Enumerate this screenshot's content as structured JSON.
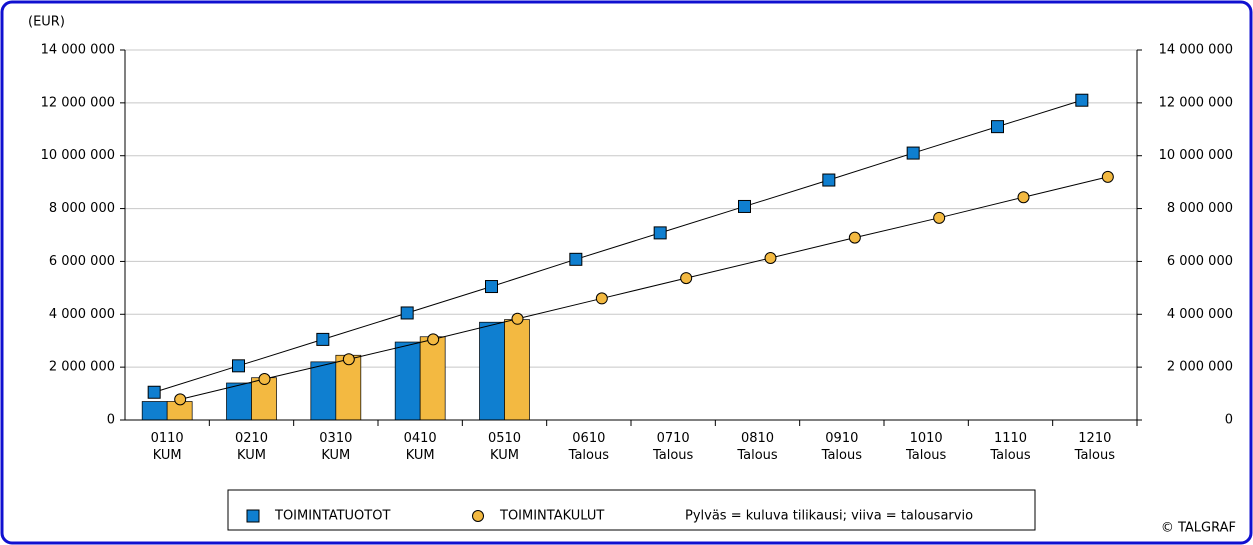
{
  "chart_data": {
    "type": "bar_line",
    "y_unit": "(EUR)",
    "categories": [
      "0110 KUM",
      "0210 KUM",
      "0310 KUM",
      "0410 KUM",
      "0510 KUM",
      "0610 Talous",
      "0710 Talous",
      "0810 Talous",
      "0910 Talous",
      "1010 Talous",
      "1110 Talous",
      "1210 Talous"
    ],
    "series": [
      {
        "name": "TOIMINTATUOTOT",
        "color": "#0f7fd0",
        "marker": "square",
        "values": [
          700000,
          1400000,
          2200000,
          2950000,
          3700000,
          null,
          null,
          null,
          null,
          null,
          null,
          null
        ],
        "line_values": [
          1050000,
          2050000,
          3050000,
          4050000,
          5050000,
          6080000,
          7080000,
          8080000,
          9080000,
          10100000,
          11100000,
          12100000
        ]
      },
      {
        "name": "TOIMINTAKULUT",
        "color": "#f3b941",
        "marker": "circle",
        "values": [
          700000,
          1600000,
          2450000,
          3150000,
          3800000,
          null,
          null,
          null,
          null,
          null,
          null,
          null
        ],
        "line_values": [
          780000,
          1550000,
          2300000,
          3050000,
          3830000,
          4600000,
          5370000,
          6130000,
          6900000,
          7650000,
          8430000,
          9200000
        ]
      }
    ],
    "legend_note": "Pylväs = kuluva tilikausi; viiva  = talousarvio",
    "copyright": "© TALGRAF",
    "ylim": [
      0,
      14000000
    ],
    "yticks": [
      0,
      {
        "value": 2000000,
        "label": "2 000 000"
      },
      {
        "value": 4000000,
        "label": "4 000 000"
      },
      {
        "value": 6000000,
        "label": "6 000 000"
      },
      {
        "value": 8000000,
        "label": "8 000 000"
      },
      {
        "value": 10000000,
        "label": "10 000 000"
      },
      {
        "value": 12000000,
        "label": "12 000 000"
      },
      {
        "value": 14000000,
        "label": "14 000 000"
      }
    ],
    "y2lim": [
      0,
      14000000
    ],
    "y2ticks": [
      0,
      {
        "value": 2000000,
        "label": "2 000 000"
      },
      {
        "value": 4000000,
        "label": "4 000 000"
      },
      {
        "value": 6000000,
        "label": "6 000 000"
      },
      {
        "value": 8000000,
        "label": "8 000 000"
      },
      {
        "value": 10000000,
        "label": "10 000 000"
      },
      {
        "value": 12000000,
        "label": "12 000 000"
      },
      {
        "value": 14000000,
        "label": "14 000 000"
      }
    ],
    "grid": true
  }
}
